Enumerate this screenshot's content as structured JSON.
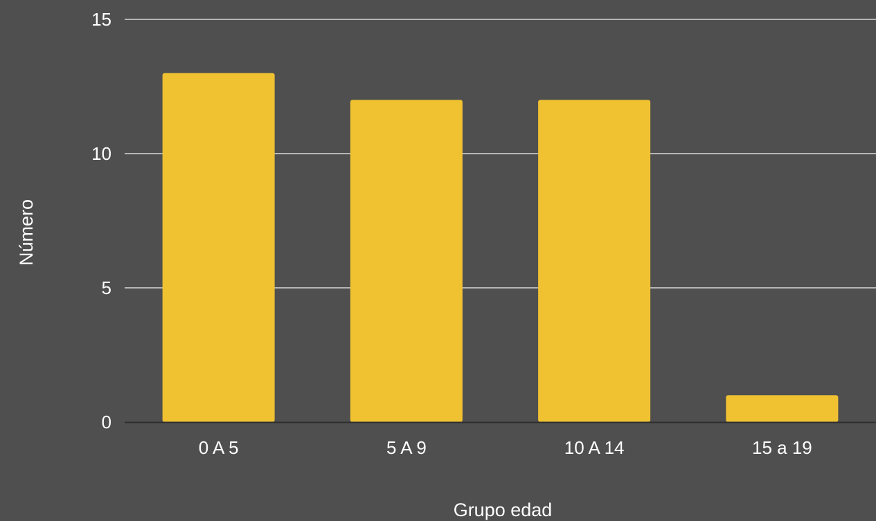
{
  "chart_data": {
    "type": "bar",
    "categories": [
      "0 A 5",
      "5 A 9",
      "10 A 14",
      "15 a 19"
    ],
    "values": [
      13,
      12,
      12,
      1
    ],
    "title": "",
    "xlabel": "Grupo edad",
    "ylabel": "Número",
    "ylim": [
      0,
      15
    ],
    "yticks": [
      0,
      5,
      10,
      15
    ],
    "grid": true,
    "legend": "none"
  },
  "colors": {
    "background": "#4f4f4f",
    "bar": "#f0c232",
    "gridline": "#d9d9d9",
    "axis": "#2e2e2e",
    "text": "#ffffff"
  }
}
